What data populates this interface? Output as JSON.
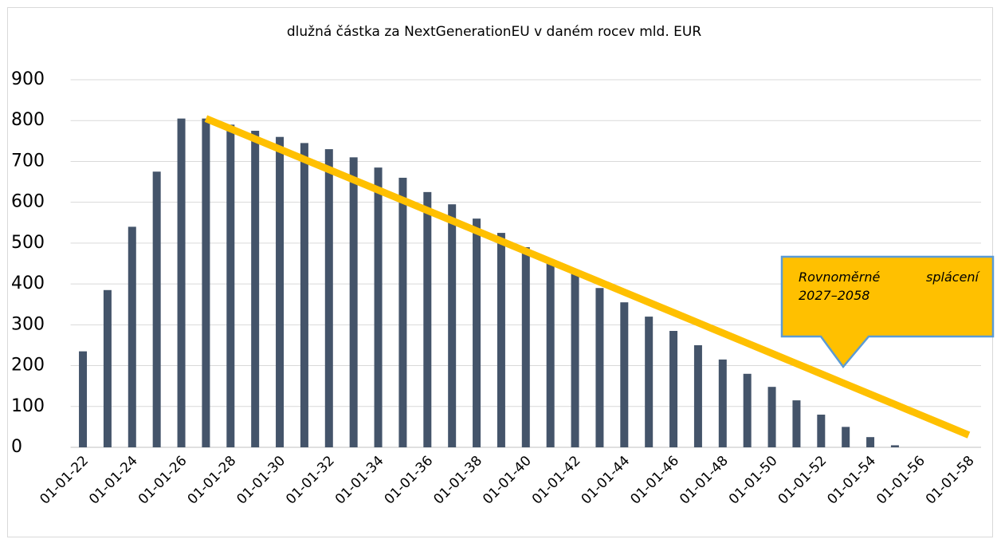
{
  "chart_data": {
    "type": "bar",
    "title": "dlužná částka za NextGenerationEU v daném rocev mld. EUR",
    "categories": [
      "01-01-22",
      null,
      "01-01-24",
      null,
      "01-01-26",
      null,
      "01-01-28",
      null,
      "01-01-30",
      null,
      "01-01-32",
      null,
      "01-01-34",
      null,
      "01-01-36",
      null,
      "01-01-38",
      null,
      "01-01-40",
      null,
      "01-01-42",
      null,
      "01-01-44",
      null,
      "01-01-46",
      null,
      "01-01-48",
      null,
      "01-01-50",
      null,
      "01-01-52",
      null,
      "01-01-54",
      null,
      "01-01-56",
      null,
      "01-01-58"
    ],
    "values": [
      235,
      385,
      540,
      675,
      805,
      805,
      790,
      775,
      760,
      745,
      730,
      710,
      685,
      660,
      625,
      595,
      560,
      525,
      490,
      460,
      425,
      390,
      355,
      320,
      285,
      250,
      215,
      180,
      148,
      115,
      80,
      50,
      25,
      5,
      0,
      0,
      0
    ],
    "color": "#44546a",
    "line": {
      "color": "#ffc000",
      "values": [
        null,
        null,
        null,
        null,
        null,
        805,
        780,
        755,
        730,
        705,
        680,
        655,
        630,
        605,
        580,
        555,
        530,
        505,
        480,
        455,
        430,
        405,
        380,
        355,
        330,
        305,
        280,
        255,
        230,
        205,
        180,
        155,
        130,
        105,
        80,
        55,
        30
      ]
    },
    "annotation": "Rovnoměrné splácení 2027–2058",
    "ylim": [
      0,
      900
    ],
    "yticks": [
      0,
      100,
      200,
      300,
      400,
      500,
      600,
      700,
      800,
      900
    ],
    "grid": true
  }
}
